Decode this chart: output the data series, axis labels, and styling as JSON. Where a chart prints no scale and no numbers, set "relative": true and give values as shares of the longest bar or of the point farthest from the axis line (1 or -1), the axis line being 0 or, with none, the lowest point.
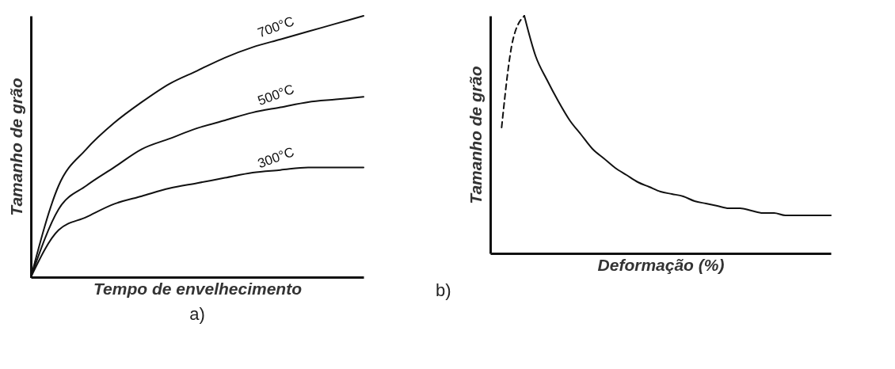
{
  "chart_data": [
    {
      "type": "line",
      "relative": true,
      "xlabel": "Tempo de envelhecimento",
      "ylabel": "Tamanho de grão",
      "annotations": [
        "a)"
      ],
      "grid": false,
      "marker": "none",
      "line_style": "solid",
      "categories": [
        null,
        null,
        null,
        null,
        null,
        null,
        null,
        null,
        null,
        null,
        null,
        null,
        null
      ],
      "series": [
        {
          "name": "700°C",
          "color": "#111111",
          "values": [
            0,
            0.35,
            0.49,
            0.59,
            0.67,
            0.74,
            0.79,
            0.84,
            0.88,
            0.91,
            0.94,
            0.97,
            1
          ]
        },
        {
          "name": "500°C",
          "color": "#111111",
          "values": [
            0,
            0.26,
            0.35,
            0.42,
            0.49,
            0.53,
            0.57,
            0.6,
            0.63,
            0.65,
            0.67,
            0.68,
            0.69
          ]
        },
        {
          "name": "300°C",
          "color": "#111111",
          "values": [
            0,
            0.18,
            0.23,
            0.28,
            0.31,
            0.34,
            0.36,
            0.38,
            0.4,
            0.41,
            0.42,
            0.42,
            0.42
          ]
        }
      ]
    },
    {
      "type": "line",
      "relative": true,
      "xlabel": "Deformação (%)",
      "ylabel": "Tamanho de grão",
      "annotations": [
        "b)"
      ],
      "grid": false,
      "marker": "none",
      "categories": [
        null,
        null,
        null,
        null,
        null,
        null,
        null,
        null,
        null,
        null,
        null,
        null,
        null,
        null,
        null,
        null,
        null,
        null,
        null,
        null,
        null,
        null,
        null,
        null,
        null,
        null,
        null,
        null,
        null,
        null,
        null
      ],
      "series": [
        {
          "color": "#111111",
          "line_style": "dashed",
          "values": [
            null,
            0.53,
            0.9,
            1,
            null,
            null,
            null,
            null,
            null,
            null,
            null,
            null,
            null,
            null,
            null,
            null,
            null,
            null,
            null,
            null,
            null,
            null,
            null,
            null,
            null,
            null,
            null,
            null,
            null,
            null,
            null
          ]
        },
        {
          "color": "#111111",
          "line_style": "solid",
          "values": [
            null,
            null,
            null,
            1,
            0.83,
            0.73,
            0.64,
            0.56,
            0.5,
            0.44,
            0.4,
            0.36,
            0.33,
            0.3,
            0.28,
            0.26,
            0.25,
            0.24,
            0.22,
            0.21,
            0.2,
            0.19,
            0.19,
            0.18,
            0.17,
            0.17,
            0.16,
            0.16,
            0.16,
            0.16,
            0.16
          ]
        }
      ]
    }
  ]
}
